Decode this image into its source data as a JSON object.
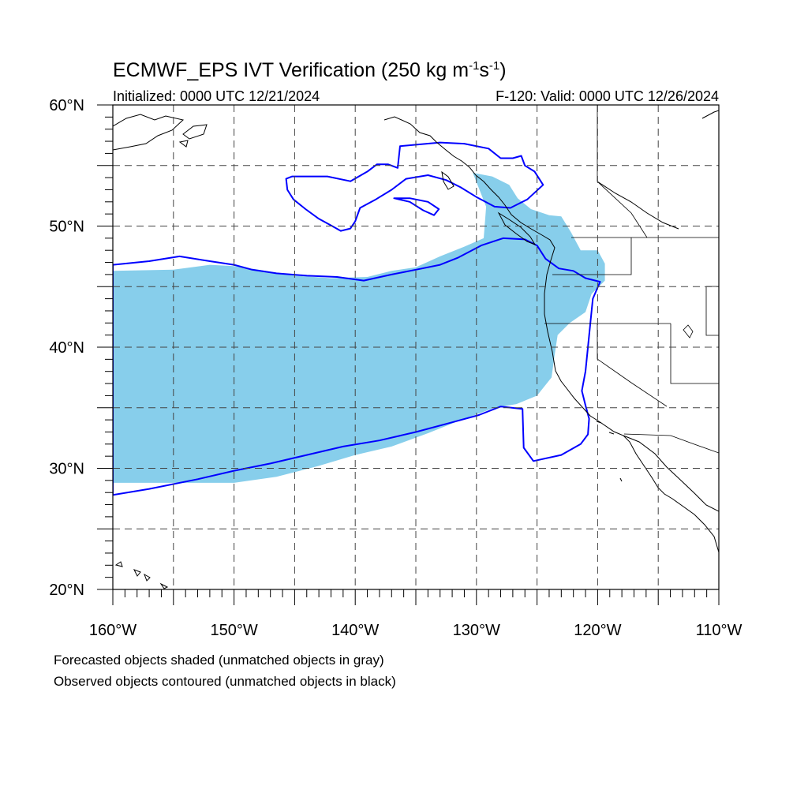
{
  "title": {
    "main": "ECMWF_EPS IVT Verification (250 kg m",
    "sup1": "-1",
    "mid": "s",
    "sup2": "-1",
    "end": ")"
  },
  "subtitle_left": "Initialized: 0000 UTC 12/21/2024",
  "subtitle_right": "F-120: Valid: 0000 UTC 12/26/2024",
  "lat_labels": [
    {
      "lat": 60,
      "text": "60°N"
    },
    {
      "lat": 50,
      "text": "50°N"
    },
    {
      "lat": 40,
      "text": "40°N"
    },
    {
      "lat": 30,
      "text": "30°N"
    },
    {
      "lat": 20,
      "text": "20°N"
    }
  ],
  "lon_labels": [
    {
      "lon": -160,
      "text": "160°W"
    },
    {
      "lon": -150,
      "text": "150°W"
    },
    {
      "lon": -140,
      "text": "140°W"
    },
    {
      "lon": -130,
      "text": "130°W"
    },
    {
      "lon": -120,
      "text": "120°W"
    },
    {
      "lon": -110,
      "text": "110°W"
    }
  ],
  "caption_line1": "Forecasted objects shaded (unmatched objects in gray)",
  "caption_line2": "Observed objects contoured (unmatched objects in black)",
  "colors": {
    "forecast_fill": "#87ceeb",
    "observed_contour": "#0000ff",
    "coastline": "#000000",
    "grid": "#444444"
  },
  "chart_data": {
    "type": "map",
    "projection": "cylindrical-equidistant",
    "lon_range": [
      -160,
      -110
    ],
    "lat_range": [
      20,
      60
    ],
    "grid_spacing_deg": 5,
    "grid_style": "dashed",
    "forecast_object": {
      "label": "Forecasted objects shaded",
      "outline_lonlat": [
        [
          -160,
          46.3
        ],
        [
          -155,
          46.4
        ],
        [
          -152,
          46.8
        ],
        [
          -150,
          46.7
        ],
        [
          -148,
          46.4
        ],
        [
          -145,
          45.9
        ],
        [
          -142,
          45.7
        ],
        [
          -139,
          45.8
        ],
        [
          -137,
          46.3
        ],
        [
          -135,
          46.6
        ],
        [
          -133,
          47.5
        ],
        [
          -131,
          48.3
        ],
        [
          -129.4,
          49.0
        ],
        [
          -129.2,
          51.6
        ],
        [
          -130.3,
          54.4
        ],
        [
          -128.7,
          54.1
        ],
        [
          -127.3,
          53.4
        ],
        [
          -126.6,
          52.3
        ],
        [
          -125.5,
          51.4
        ],
        [
          -124.0,
          50.9
        ],
        [
          -123.0,
          50.8
        ],
        [
          -122.2,
          49.5
        ],
        [
          -121.4,
          48.0
        ],
        [
          -120.0,
          48.0
        ],
        [
          -119.4,
          46.9
        ],
        [
          -119.4,
          45.5
        ],
        [
          -120.5,
          44.4
        ],
        [
          -121.0,
          42.9
        ],
        [
          -122.3,
          42.0
        ],
        [
          -123.3,
          41.0
        ],
        [
          -123.6,
          39.0
        ],
        [
          -123.8,
          37.5
        ],
        [
          -125.0,
          36.0
        ],
        [
          -126.7,
          35.3
        ],
        [
          -128.5,
          35.0
        ],
        [
          -131.5,
          33.9
        ],
        [
          -134.0,
          32.9
        ],
        [
          -137.0,
          31.8
        ],
        [
          -140.0,
          31.1
        ],
        [
          -143.0,
          30.2
        ],
        [
          -146.5,
          29.3
        ],
        [
          -150.0,
          28.8
        ],
        [
          -155.0,
          28.8
        ],
        [
          -160,
          28.8
        ]
      ]
    },
    "observed_objects": [
      {
        "label": "Observed objects contoured",
        "outline_lonlat": [
          [
            -160,
            27.8
          ],
          [
            -157,
            28.3
          ],
          [
            -153,
            29.1
          ],
          [
            -150,
            29.8
          ],
          [
            -147,
            30.4
          ],
          [
            -144,
            31.1
          ],
          [
            -141,
            31.8
          ],
          [
            -138,
            32.3
          ],
          [
            -135,
            33.0
          ],
          [
            -132,
            33.8
          ],
          [
            -129.8,
            34.4
          ],
          [
            -128,
            35.1
          ],
          [
            -126.2,
            34.9
          ],
          [
            -126.1,
            31.7
          ],
          [
            -125.3,
            30.6
          ],
          [
            -123.0,
            31.1
          ],
          [
            -121.4,
            32.0
          ],
          [
            -120.8,
            32.8
          ],
          [
            -120.7,
            34.1
          ],
          [
            -121.0,
            35.2
          ],
          [
            -121.3,
            36.4
          ],
          [
            -121.0,
            38.0
          ],
          [
            -120.8,
            40.0
          ],
          [
            -120.6,
            42.0
          ],
          [
            -120.4,
            44.0
          ],
          [
            -119.8,
            45.4
          ],
          [
            -121.0,
            45.7
          ],
          [
            -122.0,
            46.3
          ],
          [
            -123.2,
            46.5
          ],
          [
            -124.3,
            47.3
          ],
          [
            -125.0,
            48.4
          ],
          [
            -126.0,
            48.9
          ],
          [
            -127.8,
            49.0
          ],
          [
            -129.6,
            48.4
          ],
          [
            -131.5,
            47.4
          ],
          [
            -133.0,
            46.8
          ],
          [
            -135.0,
            46.4
          ],
          [
            -137.0,
            46.0
          ],
          [
            -139.3,
            45.5
          ],
          [
            -141.5,
            45.8
          ],
          [
            -144.0,
            45.9
          ],
          [
            -146.5,
            46.1
          ],
          [
            -148.5,
            46.4
          ],
          [
            -150,
            46.8
          ],
          [
            -152,
            47.1
          ],
          [
            -154.5,
            47.5
          ],
          [
            -157,
            47.1
          ],
          [
            -160,
            46.8
          ]
        ]
      },
      {
        "label": "Observed objects contoured",
        "outline_lonlat": [
          [
            -136.5,
            54.8
          ],
          [
            -136.3,
            56.6
          ],
          [
            -133.0,
            56.9
          ],
          [
            -131.0,
            56.8
          ],
          [
            -129.0,
            56.4
          ],
          [
            -128.0,
            55.6
          ],
          [
            -127.0,
            55.6
          ],
          [
            -126.3,
            55.8
          ],
          [
            -126.0,
            55.0
          ],
          [
            -125.2,
            54.5
          ],
          [
            -124.5,
            53.4
          ],
          [
            -125.8,
            52.2
          ],
          [
            -127.2,
            51.5
          ],
          [
            -128.5,
            51.6
          ],
          [
            -130.0,
            52.4
          ],
          [
            -131.3,
            53.2
          ],
          [
            -132.5,
            53.8
          ],
          [
            -134.0,
            54.2
          ],
          [
            -135.8,
            53.9
          ],
          [
            -137.0,
            53.0
          ],
          [
            -138.3,
            52.2
          ],
          [
            -139.6,
            51.5
          ],
          [
            -140.0,
            50.4
          ],
          [
            -140.4,
            49.8
          ],
          [
            -141.2,
            49.6
          ],
          [
            -141.9,
            50.0
          ],
          [
            -143.0,
            50.6
          ],
          [
            -144.1,
            51.4
          ],
          [
            -145.1,
            52.2
          ],
          [
            -145.6,
            53.0
          ],
          [
            -145.7,
            53.9
          ],
          [
            -145.2,
            54.1
          ],
          [
            -142.3,
            54.1
          ],
          [
            -140.4,
            53.7
          ],
          [
            -139.0,
            54.5
          ],
          [
            -138.2,
            55.1
          ],
          [
            -137.3,
            55.1
          ]
        ]
      },
      {
        "label": "Observed objects contoured",
        "outline_lonlat": [
          [
            -136.8,
            52.3
          ],
          [
            -135.5,
            52.0
          ],
          [
            -134.4,
            51.3
          ],
          [
            -133.5,
            50.9
          ],
          [
            -133.1,
            51.4
          ],
          [
            -134.0,
            52.0
          ],
          [
            -135.5,
            52.3
          ]
        ]
      }
    ]
  }
}
